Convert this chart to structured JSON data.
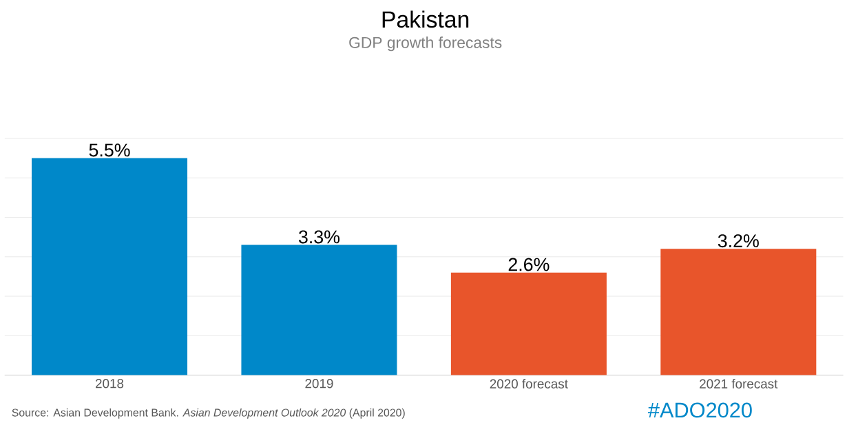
{
  "chart_data": {
    "type": "bar",
    "title": "Pakistan",
    "subtitle": "GDP growth forecasts",
    "categories": [
      "2018",
      "2019",
      "2020 forecast",
      "2021 forecast"
    ],
    "values": [
      5.5,
      3.3,
      2.6,
      3.2
    ],
    "colors": [
      "#0088c9",
      "#0088c9",
      "#e8552b",
      "#e8552b"
    ],
    "value_labels": [
      "5.5%",
      "3.3%",
      "2.6%",
      "3.2%"
    ],
    "grid": "y",
    "tick_labels": "x",
    "annotations": [
      "Source: Asian Development Bank. *Asian Development Outlook 2020* (April 2020)",
      "#ADO2020"
    ]
  }
}
